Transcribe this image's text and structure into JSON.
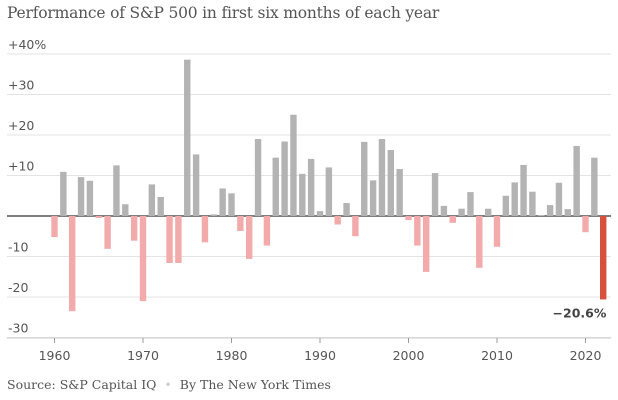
{
  "chart_data": {
    "type": "bar",
    "title": "Performance of S&P 500 in first six months of each year",
    "xlabel": "",
    "ylabel": "",
    "ylim": [
      -32,
      42
    ],
    "y_ticks": [
      {
        "value": 40,
        "label": "+40%"
      },
      {
        "value": 30,
        "label": "+30"
      },
      {
        "value": 20,
        "label": "+20"
      },
      {
        "value": 10,
        "label": "+10"
      },
      {
        "value": 0,
        "label": ""
      },
      {
        "value": -10,
        "label": "-10"
      },
      {
        "value": -20,
        "label": "-20"
      },
      {
        "value": -30,
        "label": "-30"
      }
    ],
    "x_ticks": [
      1960,
      1970,
      1980,
      1990,
      2000,
      2010,
      2020
    ],
    "grid": true,
    "colors": {
      "positive": "#b3b3b3",
      "negative": "#f2aaaa",
      "highlight": "#d6503b"
    },
    "x": [
      1960,
      1961,
      1962,
      1963,
      1964,
      1965,
      1966,
      1967,
      1968,
      1969,
      1970,
      1971,
      1972,
      1973,
      1974,
      1975,
      1976,
      1977,
      1978,
      1979,
      1980,
      1981,
      1982,
      1983,
      1984,
      1985,
      1986,
      1987,
      1988,
      1989,
      1990,
      1991,
      1992,
      1993,
      1994,
      1995,
      1996,
      1997,
      1998,
      1999,
      2000,
      2001,
      2002,
      2003,
      2004,
      2005,
      2006,
      2007,
      2008,
      2009,
      2010,
      2011,
      2012,
      2013,
      2014,
      2015,
      2016,
      2017,
      2018,
      2019,
      2020,
      2021,
      2022
    ],
    "values": [
      -5.2,
      10.9,
      -23.5,
      9.6,
      8.7,
      -0.5,
      -8.1,
      12.5,
      2.9,
      -6.1,
      -21.0,
      7.8,
      4.7,
      -11.6,
      -11.6,
      38.6,
      15.2,
      -6.5,
      0.4,
      6.8,
      5.6,
      -3.7,
      -10.6,
      19.0,
      -7.3,
      14.4,
      18.4,
      25.0,
      10.4,
      14.1,
      1.2,
      12.0,
      -2.1,
      3.2,
      -5.0,
      18.3,
      8.8,
      19.0,
      16.3,
      11.6,
      -1.0,
      -7.3,
      -13.8,
      10.6,
      2.5,
      -1.7,
      1.8,
      5.9,
      -12.8,
      1.8,
      -7.6,
      5.0,
      8.3,
      12.6,
      6.0,
      0.2,
      2.7,
      8.2,
      1.7,
      17.3,
      -4.0,
      14.4,
      -20.6
    ],
    "annotation": {
      "year": 2022,
      "label": "−20.6%"
    }
  },
  "source": {
    "text": "Source: S&P Capital IQ",
    "separator": "•",
    "credit": "By The New York Times"
  }
}
